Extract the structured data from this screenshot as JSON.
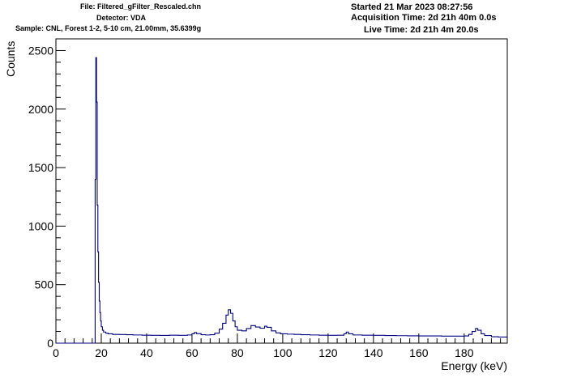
{
  "header": {
    "file": "File: Filtered_gFilter_Rescaled.chn",
    "detector": "Detector: VDA",
    "sample": "Sample: CNL, Forest 1-2, 5-10 cm, 21.00mm, 35.6399g",
    "started": "Started 21 Mar 2023 08:27:56",
    "acquisition_time": "Acquisition Time: 2d 21h 40m 0.0s",
    "live_time": "Live Time: 2d 21h 4m 20.0s"
  },
  "colors": {
    "series": "#000080",
    "axis": "#000000",
    "background": "#ffffff"
  },
  "chart_data": {
    "type": "line",
    "xlabel": "Energy (keV)",
    "ylabel": "Counts",
    "xlim": [
      0,
      199
    ],
    "ylim": [
      0,
      2600
    ],
    "x_ticks": [
      0,
      20,
      40,
      60,
      80,
      100,
      120,
      140,
      160,
      180
    ],
    "y_ticks": [
      0,
      500,
      1000,
      1500,
      2000,
      2500
    ],
    "grid": false,
    "series": [
      {
        "points": [
          [
            0,
            0
          ],
          [
            17.0,
            0
          ],
          [
            17.3,
            1400
          ],
          [
            17.6,
            2440
          ],
          [
            17.9,
            2060
          ],
          [
            18.2,
            1180
          ],
          [
            18.5,
            780
          ],
          [
            18.8,
            520
          ],
          [
            19.1,
            360
          ],
          [
            19.4,
            260
          ],
          [
            19.7,
            190
          ],
          [
            20.0,
            140
          ],
          [
            20.5,
            110
          ],
          [
            21.0,
            95
          ],
          [
            22.0,
            85
          ],
          [
            23.0,
            80
          ],
          [
            25.0,
            75
          ],
          [
            28.0,
            74
          ],
          [
            31.0,
            72
          ],
          [
            34.0,
            70
          ],
          [
            38.0,
            68
          ],
          [
            42.0,
            67
          ],
          [
            46.0,
            66
          ],
          [
            50.0,
            68
          ],
          [
            54.0,
            67
          ],
          [
            58.0,
            70
          ],
          [
            60.0,
            80
          ],
          [
            61.0,
            90
          ],
          [
            62.0,
            82
          ],
          [
            64.0,
            72
          ],
          [
            66.0,
            70
          ],
          [
            68.0,
            72
          ],
          [
            70.0,
            85
          ],
          [
            72.0,
            120
          ],
          [
            73.5,
            170
          ],
          [
            75.0,
            240
          ],
          [
            76.0,
            285
          ],
          [
            77.0,
            255
          ],
          [
            78.0,
            190
          ],
          [
            79.0,
            140
          ],
          [
            80.0,
            110
          ],
          [
            82.0,
            105
          ],
          [
            84.0,
            125
          ],
          [
            86.0,
            150
          ],
          [
            88.0,
            138
          ],
          [
            90.0,
            128
          ],
          [
            92.0,
            145
          ],
          [
            93.0,
            135
          ],
          [
            95.0,
            105
          ],
          [
            97.0,
            88
          ],
          [
            99.0,
            80
          ],
          [
            102.0,
            77
          ],
          [
            105.0,
            75
          ],
          [
            108.0,
            72
          ],
          [
            112.0,
            70
          ],
          [
            116.0,
            68
          ],
          [
            120.0,
            67
          ],
          [
            124.0,
            68
          ],
          [
            127.0,
            80
          ],
          [
            128.0,
            95
          ],
          [
            129.0,
            80
          ],
          [
            131.0,
            70
          ],
          [
            135.0,
            68
          ],
          [
            140.0,
            67
          ],
          [
            145.0,
            65
          ],
          [
            150.0,
            64
          ],
          [
            155.0,
            63
          ],
          [
            160.0,
            62
          ],
          [
            165.0,
            62
          ],
          [
            170.0,
            60
          ],
          [
            175.0,
            60
          ],
          [
            180.0,
            62
          ],
          [
            182.0,
            75
          ],
          [
            183.5,
            100
          ],
          [
            185.0,
            125
          ],
          [
            186.0,
            110
          ],
          [
            187.5,
            80
          ],
          [
            189.0,
            65
          ],
          [
            192.0,
            55
          ],
          [
            195.0,
            52
          ],
          [
            199.0,
            50
          ]
        ]
      }
    ]
  }
}
